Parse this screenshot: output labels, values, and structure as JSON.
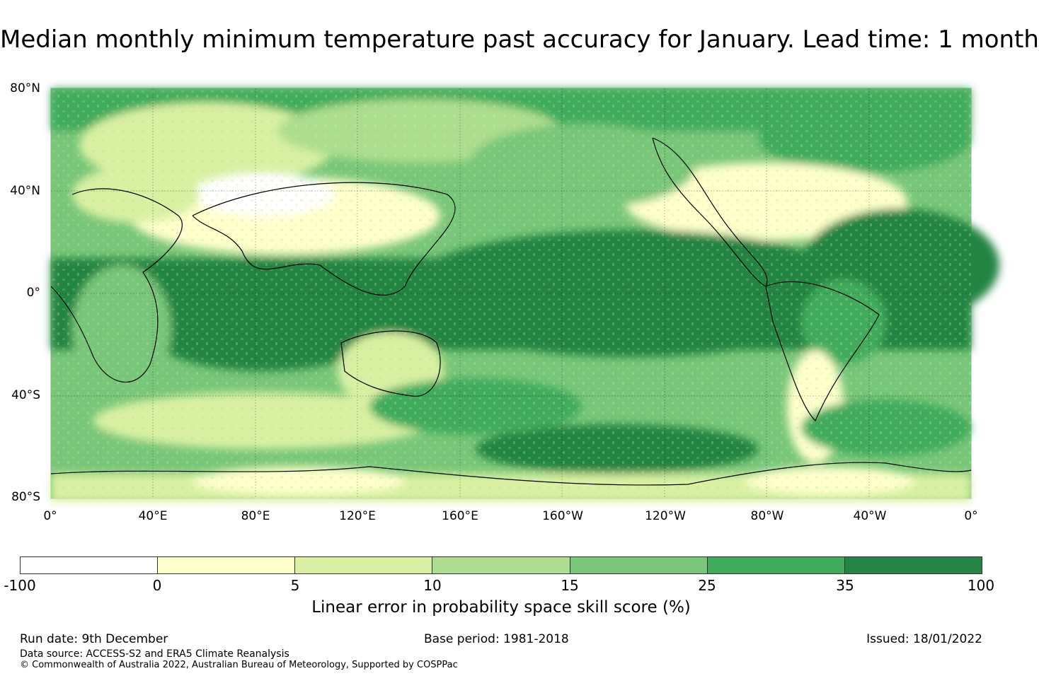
{
  "title": "Median monthly minimum temperature past accuracy for January. Lead time: 1 month",
  "map": {
    "lat_labels": [
      "80°N",
      "40°N",
      "0°",
      "40°S",
      "80°S"
    ],
    "lon_labels": [
      "0°",
      "40°E",
      "80°E",
      "120°E",
      "160°E",
      "160°W",
      "120°W",
      "80°W",
      "40°W",
      "0°"
    ],
    "lat_range": [
      -80,
      80
    ],
    "lon_range": [
      0,
      360
    ]
  },
  "colorbar": {
    "ticks": [
      "-100",
      "0",
      "5",
      "10",
      "15",
      "25",
      "35",
      "100"
    ],
    "colors": [
      "#ffffff",
      "#ffffcc",
      "#d9f0a3",
      "#addd8e",
      "#78c679",
      "#41ab5d",
      "#238443"
    ],
    "label": "Linear error in probability space skill score (%)"
  },
  "footer": {
    "run_date": "Run date: 9th December",
    "base_period": "Base period: 1981-2018",
    "issued": "Issued: 18/01/2022",
    "data_source": "Data source: ACCESS-S2 and ERA5 Climate Reanalysis",
    "copyright": "© Commonwealth of Australia 2022, Australian Bureau of Meteorology, Supported by COSPPac"
  }
}
